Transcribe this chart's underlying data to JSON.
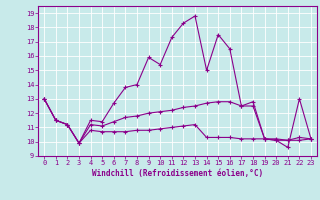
{
  "xlabel": "Windchill (Refroidissement éolien,°C)",
  "ylabel": "",
  "background_color": "#c8eaea",
  "line_color": "#8b008b",
  "xlim": [
    -0.5,
    23.5
  ],
  "ylim": [
    9,
    19.5
  ],
  "yticks": [
    9,
    10,
    11,
    12,
    13,
    14,
    15,
    16,
    17,
    18,
    19
  ],
  "xticks": [
    0,
    1,
    2,
    3,
    4,
    5,
    6,
    7,
    8,
    9,
    10,
    11,
    12,
    13,
    14,
    15,
    16,
    17,
    18,
    19,
    20,
    21,
    22,
    23
  ],
  "series": [
    [
      13.0,
      11.5,
      11.2,
      9.9,
      11.5,
      11.4,
      12.7,
      13.8,
      14.0,
      15.9,
      15.4,
      17.3,
      18.3,
      18.8,
      15.0,
      17.5,
      16.5,
      12.5,
      12.8,
      10.2,
      10.1,
      9.6,
      13.0,
      10.2
    ],
    [
      13.0,
      11.5,
      11.2,
      9.9,
      11.2,
      11.1,
      11.4,
      11.7,
      11.8,
      12.0,
      12.1,
      12.2,
      12.4,
      12.5,
      12.7,
      12.8,
      12.8,
      12.5,
      12.5,
      10.2,
      10.1,
      10.1,
      10.3,
      10.2
    ],
    [
      13.0,
      11.5,
      11.2,
      9.9,
      10.8,
      10.7,
      10.7,
      10.7,
      10.8,
      10.8,
      10.9,
      11.0,
      11.1,
      11.2,
      10.3,
      10.3,
      10.3,
      10.2,
      10.2,
      10.2,
      10.2,
      10.1,
      10.1,
      10.2
    ]
  ],
  "grid_color": "#ffffff",
  "font_family": "monospace",
  "tick_fontsize": 5.0,
  "xlabel_fontsize": 5.5
}
